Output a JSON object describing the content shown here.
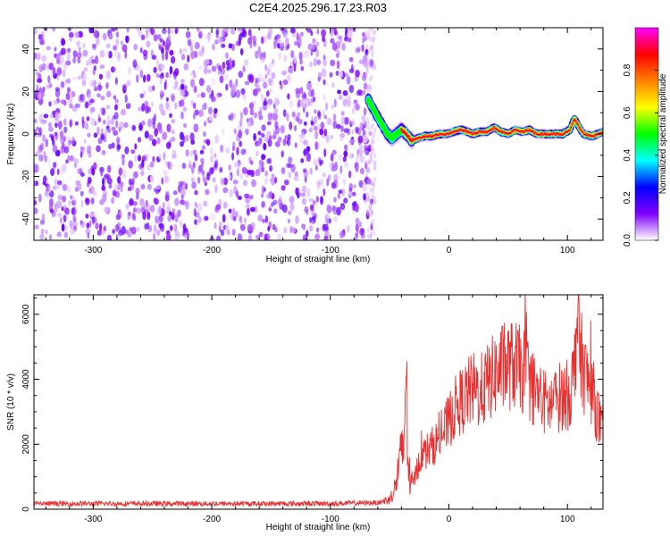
{
  "title": "C2E4.2025.296.17.23.R03",
  "chart_data": [
    {
      "type": "heatmap",
      "xlabel": "Height of straight line (km)",
      "ylabel": "Frequency (Hz)",
      "xlim": [
        -350,
        130
      ],
      "ylim": [
        -50,
        50
      ],
      "xticks": [
        -300,
        -200,
        -100,
        0,
        100
      ],
      "yticks": [
        -40,
        -20,
        0,
        20,
        40
      ],
      "noise_region_x": [
        -350,
        -65
      ],
      "signal_trace": [
        [
          -68,
          16
        ],
        [
          -64,
          12
        ],
        [
          -60,
          8
        ],
        [
          -56,
          4
        ],
        [
          -52,
          0
        ],
        [
          -48,
          -2
        ],
        [
          -44,
          0
        ],
        [
          -40,
          2
        ],
        [
          -36,
          0
        ],
        [
          -32,
          -3
        ],
        [
          -26,
          -2
        ],
        [
          -20,
          -1
        ],
        [
          -14,
          -1
        ],
        [
          -8,
          0
        ],
        [
          -2,
          0
        ],
        [
          4,
          1
        ],
        [
          10,
          2
        ],
        [
          16,
          1
        ],
        [
          20,
          0
        ],
        [
          26,
          1
        ],
        [
          32,
          1
        ],
        [
          38,
          3
        ],
        [
          44,
          1
        ],
        [
          50,
          0
        ],
        [
          56,
          2
        ],
        [
          62,
          1
        ],
        [
          68,
          2
        ],
        [
          74,
          0
        ],
        [
          80,
          0
        ],
        [
          88,
          0
        ],
        [
          96,
          0
        ],
        [
          102,
          2
        ],
        [
          106,
          7
        ],
        [
          110,
          3
        ],
        [
          114,
          0
        ],
        [
          120,
          -1
        ],
        [
          126,
          0
        ],
        [
          130,
          1
        ]
      ],
      "colorbar": {
        "label": "Normalized spectral amplitude",
        "range": [
          0,
          1
        ],
        "ticks": [
          "0.0",
          "0.2",
          "0.4",
          "0.6",
          "0.8"
        ],
        "colors": [
          "#ffffff",
          "#8000ff",
          "#0000ff",
          "#00ffff",
          "#00ff00",
          "#ffff00",
          "#ff8000",
          "#ff0000",
          "#ff00ff"
        ]
      }
    },
    {
      "type": "line",
      "xlabel": "Height of straight line (km)",
      "ylabel": "SNR (10 * v/v)",
      "xlim": [
        -350,
        130
      ],
      "ylim": [
        0,
        6600
      ],
      "xticks": [
        -300,
        -200,
        -100,
        0,
        100
      ],
      "yticks": [
        0,
        2000,
        4000,
        6000
      ],
      "color": "#e83030",
      "series": [
        {
          "x": [
            -350,
            -300,
            -250,
            -200,
            -150,
            -100,
            -60,
            -50,
            -45,
            -42,
            -38,
            -36,
            -35,
            -33,
            -30,
            -25,
            -20,
            -15,
            -10,
            -5,
            0,
            5,
            10,
            15,
            20,
            25,
            30,
            35,
            40,
            45,
            50,
            55,
            60,
            65,
            70,
            75,
            80,
            85,
            90,
            95,
            100,
            103,
            106,
            108,
            110,
            113,
            116,
            120,
            125,
            130
          ],
          "values": [
            170,
            170,
            170,
            170,
            170,
            175,
            200,
            300,
            700,
            1400,
            1900,
            4800,
            2200,
            700,
            800,
            1500,
            1750,
            1900,
            2100,
            2350,
            2700,
            3100,
            3300,
            3500,
            3700,
            3600,
            3750,
            4000,
            4200,
            4350,
            4400,
            4450,
            4300,
            4200,
            3800,
            3500,
            3300,
            3200,
            3350,
            3500,
            3500,
            3700,
            4300,
            6200,
            5000,
            4400,
            4000,
            3800,
            3000,
            2200
          ]
        }
      ]
    }
  ]
}
